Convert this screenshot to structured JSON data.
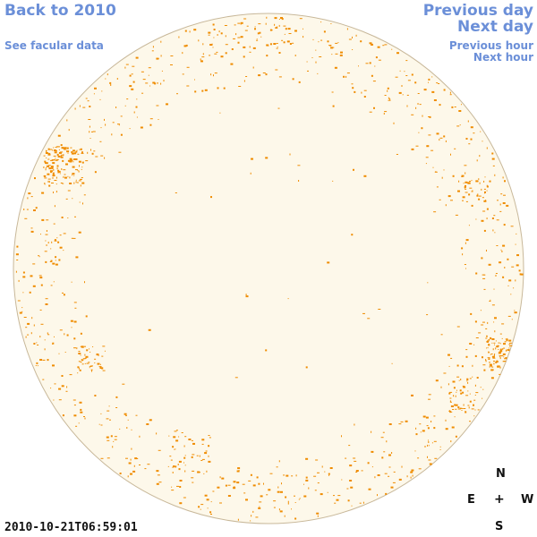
{
  "nav": {
    "back_label": "Back to 2010",
    "facular_label": "See facular data",
    "prev_day_label": "Previous day",
    "next_day_label": "Next day",
    "prev_hour_label": "Previous hour",
    "next_hour_label": "Next hour"
  },
  "compass": {
    "n": "N",
    "e": "E",
    "center": "+",
    "w": "W",
    "s": "S"
  },
  "timestamp": "2010-10-21T06:59:01",
  "colors": {
    "disk_fill": "#fdf8ea",
    "disk_stroke": "#c8b89a",
    "facula": "#ef8c00",
    "link": "#6b8fd8"
  }
}
